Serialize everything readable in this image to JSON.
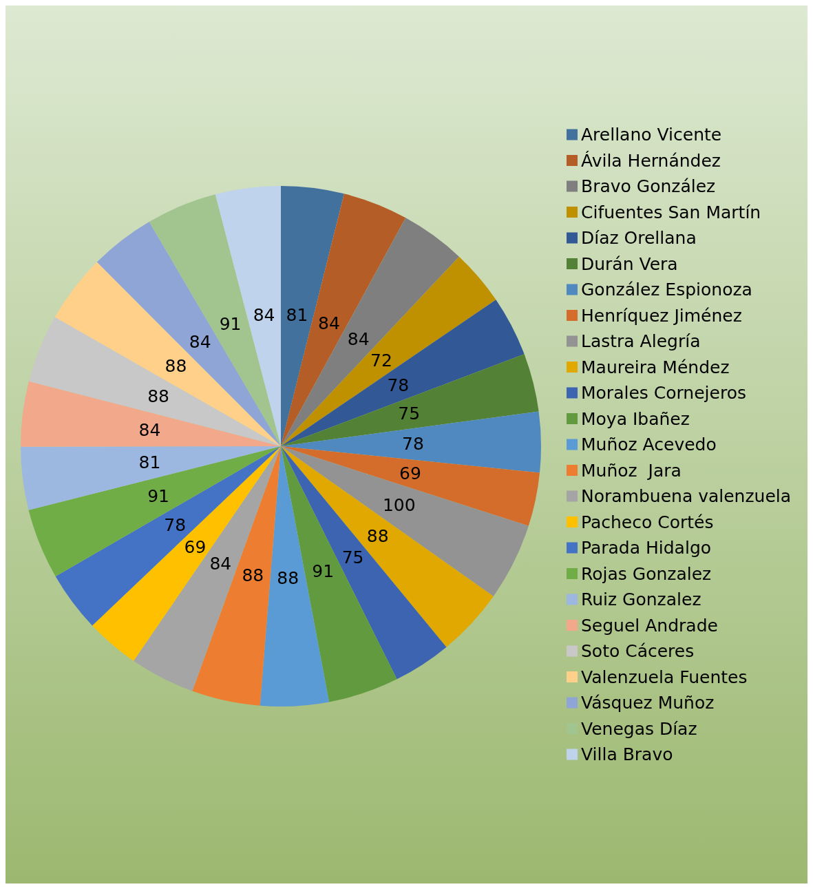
{
  "chart_data": {
    "type": "pie",
    "categories": [
      "Arellano Vicente",
      "Ávila Hernández",
      "Bravo González",
      "Cifuentes San Martín",
      "Díaz Orellana",
      "Durán Vera",
      "González Espionoza",
      "Henríquez Jiménez",
      "Lastra Alegría",
      "Maureira Méndez",
      "Morales Cornejeros",
      "Moya Ibañez",
      "Muñoz Acevedo",
      "Muñoz  Jara",
      "Norambuena valenzuela",
      "Pacheco Cortés",
      "Parada Hidalgo",
      "Rojas Gonzalez",
      "Ruiz Gonzalez",
      "Seguel Andrade",
      "Soto Cáceres",
      "Valenzuela Fuentes",
      "Vásquez Muñoz",
      "Venegas Díaz",
      "Villa Bravo"
    ],
    "values": [
      81,
      84,
      84,
      72,
      78,
      75,
      78,
      69,
      100,
      88,
      75,
      91,
      88,
      88,
      84,
      69,
      78,
      91,
      81,
      84,
      88,
      88,
      84,
      91,
      84
    ],
    "colors": [
      "#41719c",
      "#b55d26",
      "#7f7f7f",
      "#bf9000",
      "#335896",
      "#538135",
      "#5089c0",
      "#d46c2c",
      "#939393",
      "#e0a800",
      "#3d64b0",
      "#629b3f",
      "#5b9bd5",
      "#ed7d31",
      "#a5a5a5",
      "#ffc000",
      "#4472c4",
      "#70ad47",
      "#9cb8e0",
      "#f2a88a",
      "#c8c8c8",
      "#ffd08a",
      "#8fa5d6",
      "#a2c48e",
      "#c0d3ec"
    ],
    "data_labels": true,
    "legend": "right"
  }
}
